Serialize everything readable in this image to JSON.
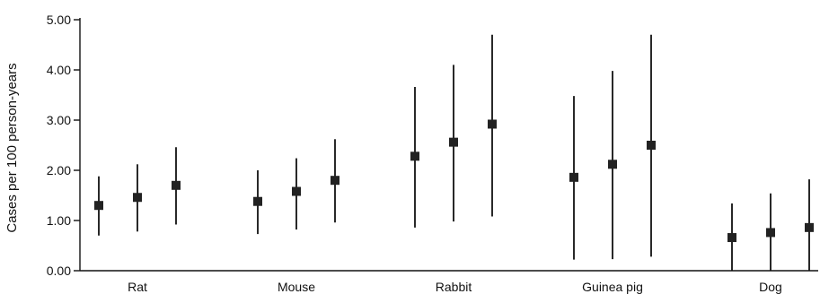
{
  "chart_data": {
    "type": "scatter",
    "title": "",
    "xlabel": "",
    "ylabel": "Cases per 100 person-years",
    "ylim": [
      0,
      5
    ],
    "yticks": [
      "0.00",
      "1.00",
      "2.00",
      "3.00",
      "4.00",
      "5.00"
    ],
    "grid": false,
    "categories": [
      "Rat",
      "Mouse",
      "Rabbit",
      "Guinea pig",
      "Dog"
    ],
    "points_per_category": 3,
    "groups": [
      {
        "category": "Rat",
        "points": [
          {
            "value": 1.3,
            "lower": 0.7,
            "upper": 1.88
          },
          {
            "value": 1.46,
            "lower": 0.78,
            "upper": 2.12
          },
          {
            "value": 1.7,
            "lower": 0.92,
            "upper": 2.46
          }
        ]
      },
      {
        "category": "Mouse",
        "points": [
          {
            "value": 1.38,
            "lower": 0.73,
            "upper": 2.0
          },
          {
            "value": 1.58,
            "lower": 0.82,
            "upper": 2.24
          },
          {
            "value": 1.8,
            "lower": 0.96,
            "upper": 2.62
          }
        ]
      },
      {
        "category": "Rabbit",
        "points": [
          {
            "value": 2.28,
            "lower": 0.86,
            "upper": 3.66
          },
          {
            "value": 2.56,
            "lower": 0.98,
            "upper": 4.1
          },
          {
            "value": 2.92,
            "lower": 1.08,
            "upper": 4.7
          }
        ]
      },
      {
        "category": "Guinea pig",
        "points": [
          {
            "value": 1.86,
            "lower": 0.22,
            "upper": 3.48
          },
          {
            "value": 2.12,
            "lower": 0.23,
            "upper": 3.98
          },
          {
            "value": 2.5,
            "lower": 0.28,
            "upper": 4.7
          }
        ]
      },
      {
        "category": "Dog",
        "points": [
          {
            "value": 0.66,
            "lower": 0.0,
            "upper": 1.34
          },
          {
            "value": 0.76,
            "lower": 0.0,
            "upper": 1.54
          },
          {
            "value": 0.86,
            "lower": 0.0,
            "upper": 1.82
          }
        ]
      }
    ]
  }
}
